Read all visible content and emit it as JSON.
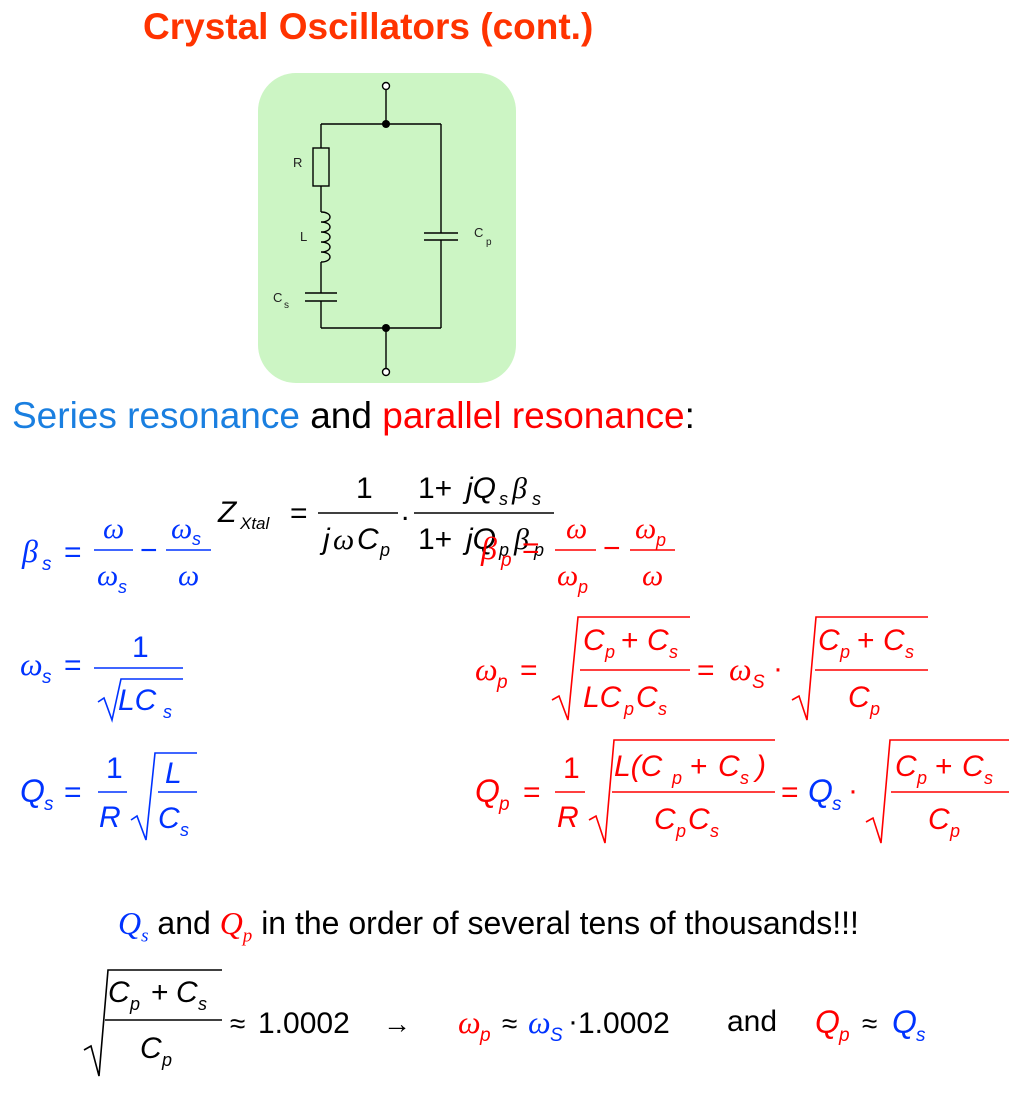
{
  "slide": {
    "title": "Crystal Oscillators (cont.)",
    "heading": {
      "series": "Series resonance",
      "and": "and",
      "parallel": "parallel resonance",
      "colon": ":"
    },
    "note": {
      "qs": "Q",
      "qs_sub": "s",
      "and": "and",
      "qp": "Q",
      "qp_sub": "p",
      "text": "in the order of several tens of thousands!!!"
    },
    "approx": {
      "value1": "1.0002",
      "value2": "1.0002",
      "and": "and"
    }
  },
  "circuit": {
    "labels": {
      "r": "R",
      "l": "L",
      "cs": "C",
      "cs_sub": "s",
      "cp": "C",
      "cp_sub": "p"
    }
  },
  "formulas": {
    "zxtal": "Z_Xtal = 1/(jωC_p) · (1 + jQ_s β_s)/(1 + jQ_p β_p)",
    "beta_s": "β_s = ω/ω_s − ω_s/ω",
    "beta_p": "β_p = ω/ω_p − ω_p/ω",
    "omega_s": "ω_s = 1/√(LC_s)",
    "omega_p": "ω_p = √((C_p + C_s)/(LC_pC_s)) = ω_s · √((C_p + C_s)/C_p)",
    "q_s": "Q_s = (1/R)·√(L/C_s)",
    "q_p": "Q_p = (1/R)·√(L(C_p + C_s)/(C_pC_s)) = Q_s · √((C_p + C_s)/C_p)",
    "approx": "√((C_p + C_s)/C_p) ≈ 1.0002 → ω_p ≈ ω_S·1.0002 and Q_p ≈ Q_s"
  },
  "colors": {
    "title": "#ff3300",
    "series": "#1a7fe0",
    "parallel": "#ff0000",
    "blue_math": "#0033ff",
    "red_math": "#ff0000",
    "circuit_bg": "#ccf5c4"
  }
}
